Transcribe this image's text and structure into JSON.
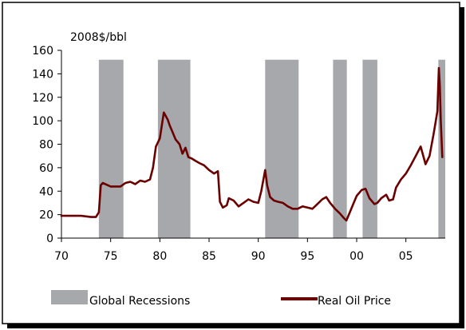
{
  "chart_data": {
    "type": "line",
    "unit_label": "2008$/bbl",
    "x_tick_labels": [
      "70",
      "75",
      "80",
      "85",
      "90",
      "95",
      "00",
      "05"
    ],
    "y_tick_labels": [
      "0",
      "20",
      "40",
      "60",
      "80",
      "100",
      "120",
      "140",
      "160"
    ],
    "xlim": [
      1970,
      2009
    ],
    "ylim": [
      0,
      160
    ],
    "grid": false,
    "legend_position": "bottom",
    "colors": {
      "recession": "#A6A8AB",
      "oil_price": "#6B0000",
      "frame_shadow": "#000000"
    },
    "recessions": {
      "name": "Global Recessions",
      "periods": [
        [
          1973.8,
          1976.3
        ],
        [
          1979.8,
          1983.1
        ],
        [
          1990.7,
          1994.1
        ],
        [
          1997.6,
          1999.0
        ],
        [
          2000.6,
          2002.1
        ],
        [
          2008.3,
          2009.0
        ]
      ]
    },
    "series": [
      {
        "name": "Real Oil Price",
        "x": [
          1970,
          1971,
          1972,
          1973,
          1973.5,
          1973.8,
          1974.0,
          1974.2,
          1975,
          1976,
          1976.5,
          1977,
          1977.5,
          1978,
          1978.5,
          1979,
          1979.3,
          1979.6,
          1980,
          1980.4,
          1980.8,
          1981,
          1981.3,
          1981.6,
          1982,
          1982.3,
          1982.6,
          1982.9,
          1983.2,
          1983.6,
          1984,
          1984.5,
          1985,
          1985.5,
          1985.9,
          1986.1,
          1986.4,
          1986.8,
          1987,
          1987.5,
          1988,
          1988.5,
          1989,
          1989.5,
          1990,
          1990.3,
          1990.7,
          1990.9,
          1991.2,
          1991.6,
          1992,
          1992.5,
          1993,
          1993.5,
          1994,
          1994.5,
          1995,
          1995.5,
          1996,
          1996.5,
          1996.9,
          1997.3,
          1997.8,
          1998.3,
          1998.7,
          1998.95,
          1999.3,
          1999.7,
          2000,
          2000.5,
          2000.9,
          2001.3,
          2001.8,
          2002.1,
          2002.5,
          2003,
          2003.3,
          2003.7,
          2004,
          2004.5,
          2005,
          2005.5,
          2006,
          2006.5,
          2007,
          2007.4,
          2007.8,
          2008.0,
          2008.2,
          2008.35,
          2008.45,
          2008.55,
          2008.7
        ],
        "y": [
          19,
          19,
          19,
          18,
          18,
          22,
          45,
          47,
          44,
          44,
          47,
          48,
          46,
          49,
          48,
          50,
          60,
          78,
          85,
          107,
          101,
          96,
          90,
          84,
          80,
          72,
          77,
          69,
          68,
          66,
          64,
          62,
          58,
          55,
          57,
          31,
          26,
          28,
          34,
          32,
          27,
          30,
          33,
          31,
          30,
          40,
          58,
          45,
          35,
          32,
          31,
          30,
          27,
          25,
          25,
          27,
          26,
          25,
          29,
          33,
          35,
          30,
          25,
          21,
          17,
          15,
          22,
          30,
          36,
          41,
          42,
          34,
          29,
          30,
          34,
          37,
          32,
          33,
          43,
          50,
          55,
          62,
          70,
          78,
          63,
          70,
          88,
          98,
          108,
          145,
          130,
          100,
          69
        ]
      }
    ],
    "legend": [
      {
        "label": "Global Recessions"
      },
      {
        "label": "Real Oil Price"
      }
    ]
  }
}
